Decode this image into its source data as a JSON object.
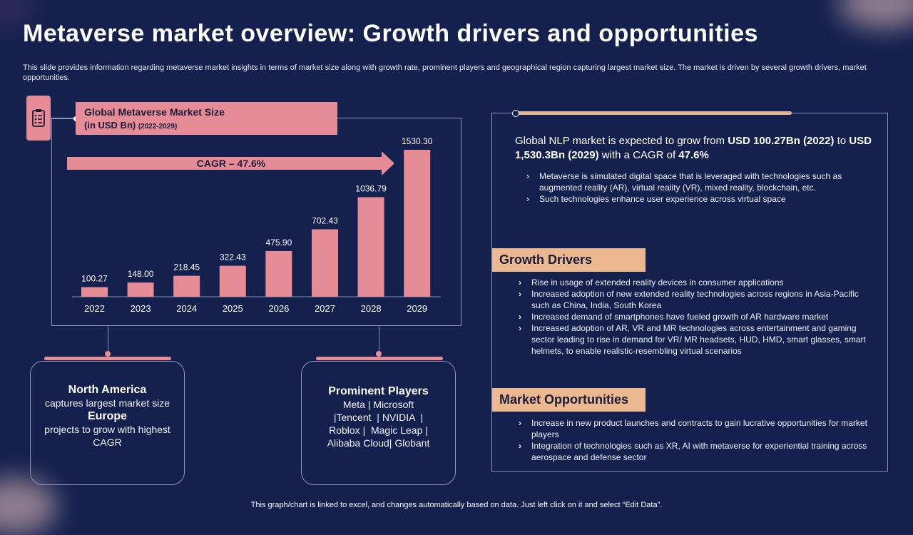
{
  "title": "Metaverse market overview: Growth drivers and opportunities",
  "subtitle": "This slide provides information regarding metaverse market insights in terms of market size along with growth rate, prominent players and geographical region capturing largest market size. The market is driven by several growth drivers, market opportunities.",
  "chart_header": {
    "line1": "Global Metaverse Market Size",
    "line2": "(in USD Bn)",
    "line2_small": "(2022-2029)"
  },
  "chart_data": {
    "type": "bar",
    "title": "Global Metaverse Market Size (in USD Bn) (2022-2029)",
    "categories": [
      "2022",
      "2023",
      "2024",
      "2025",
      "2026",
      "2027",
      "2028",
      "2029"
    ],
    "values": [
      100.27,
      148.0,
      218.45,
      322.43,
      475.9,
      702.43,
      1036.79,
      1530.3
    ],
    "value_labels": [
      "100.27",
      "148.00",
      "218.45",
      "322.43",
      "475.90",
      "702.43",
      "1036.79",
      "1530.30"
    ],
    "xlabel": "",
    "ylabel": "",
    "ylim": [
      0,
      1530.3
    ],
    "annotation": "CAGR – 47.6%",
    "bar_color": "#e58c97"
  },
  "cards": {
    "region": {
      "heading1": "North America",
      "text1": "captures largest market size",
      "heading2": "Europe",
      "text2": "projects to grow with highest CAGR"
    },
    "players": {
      "heading": "Prominent Players",
      "line1": "Meta | Microsoft",
      "line2": "|Tencent  | NVIDIA  |",
      "line3": "Roblox |  Magic Leap |",
      "line4": "Alibaba Cloud| Globant"
    }
  },
  "right": {
    "lead_pre": "Global NLP market is expected to grow from ",
    "lead_b1": "USD 100.27Bn (2022)",
    "lead_mid": " to ",
    "lead_b2": "USD 1,530.3Bn (2029)",
    "lead_mid2": " with a CAGR of ",
    "lead_b3": "47.6%",
    "intro_bullets": [
      "Metaverse  is simulated digital space that is leveraged  with technologies such as augmented  reality (AR), virtual  reality (VR), mixed reality, blockchain, etc.",
      "Such technologies  enhance user experience across virtual  space"
    ],
    "growth_title": "Growth Drivers",
    "growth_bullets": [
      "Rise in usage of extended reality devices in consumer applications",
      "Increased  adoption  of new extended reality technologies  across regions  in Asia-Pacific such as China,  India,  South Korea",
      "Increased demand  of smartphones  have  fueled growth  of AR hardware  market",
      "Increased  adoption of AR,  VR and MR technologies  across entertainment  and gaming sector leading to rise in demand for VR/ MR headsets, HUD, HMD, smart glasses, smart helmets,  to enable realistic-resembling virtual  scenarios"
    ],
    "opp_title": "Market Opportunities",
    "opp_bullets": [
      "Increase  in new product launches  and contracts to gain lucrative  opportunities for market players",
      "Integration  of technologies  such as XR,  AI with metaverse  for experiential training across aerospace  and defense  sector"
    ]
  },
  "footer": "This graph/chart is linked to excel,  and changes automatically based on data. Just left click on it and select “Edit Data”.",
  "colors": {
    "background": "#14204e",
    "pink": "#e58c97",
    "peach": "#ebb88f"
  }
}
